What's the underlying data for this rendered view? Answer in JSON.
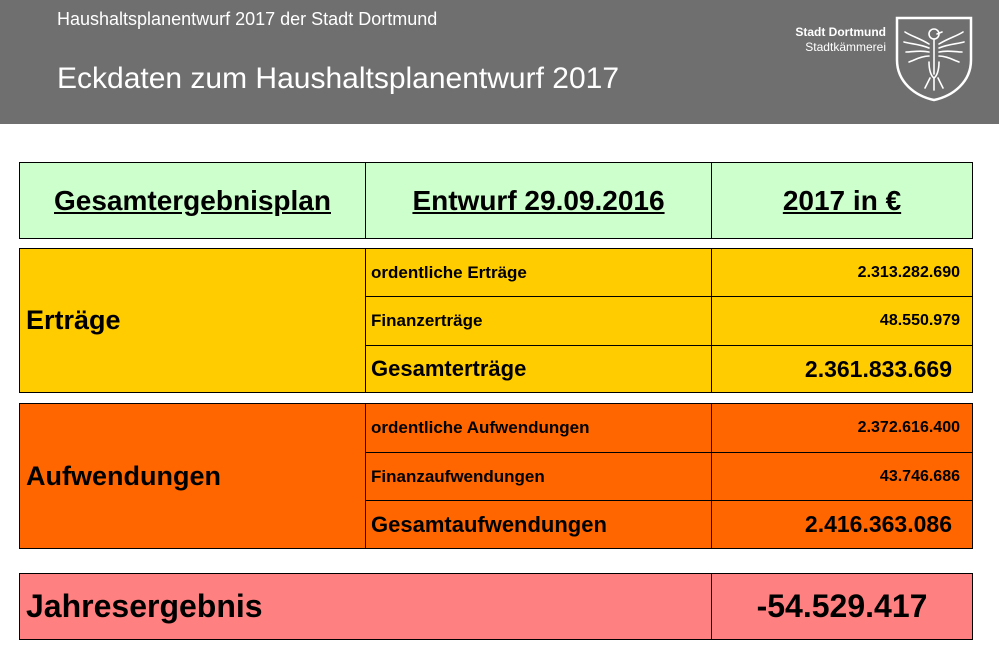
{
  "header": {
    "subtitle": "Haushaltsplanentwurf 2017 der Stadt Dortmund",
    "title": "Eckdaten zum Haushaltsplanentwurf 2017",
    "logo": {
      "name": "Stadt Dortmund",
      "department": "Stadtkämmerei",
      "emblem": "eagle-crest-icon"
    }
  },
  "table": {
    "columns": [
      "Gesamtergebnisplan",
      "Entwurf 29.09.2016",
      "2017 in €"
    ],
    "ertraege": {
      "label": "Erträge",
      "rows": [
        {
          "label": "ordentliche Erträge",
          "value": "2.313.282.690"
        },
        {
          "label": "Finanzerträge",
          "value": "48.550.979"
        }
      ],
      "total": {
        "label": "Gesamterträge",
        "value": "2.361.833.669"
      }
    },
    "aufwendungen": {
      "label": "Aufwendungen",
      "rows": [
        {
          "label": "ordentliche Aufwendungen",
          "value": "2.372.616.400"
        },
        {
          "label": "Finanzaufwendungen",
          "value": "43.746.686"
        }
      ],
      "total": {
        "label": "Gesamtaufwendungen",
        "value": "2.416.363.086"
      }
    },
    "result": {
      "label": "Jahresergebnis",
      "value": "-54.529.417"
    }
  },
  "colors": {
    "header_bg": "#6f6f6f",
    "column_header_bg": "#ccffcc",
    "ertraege_bg": "#ffcc00",
    "aufwendungen_bg": "#ff6600",
    "result_bg": "#ff8080"
  }
}
